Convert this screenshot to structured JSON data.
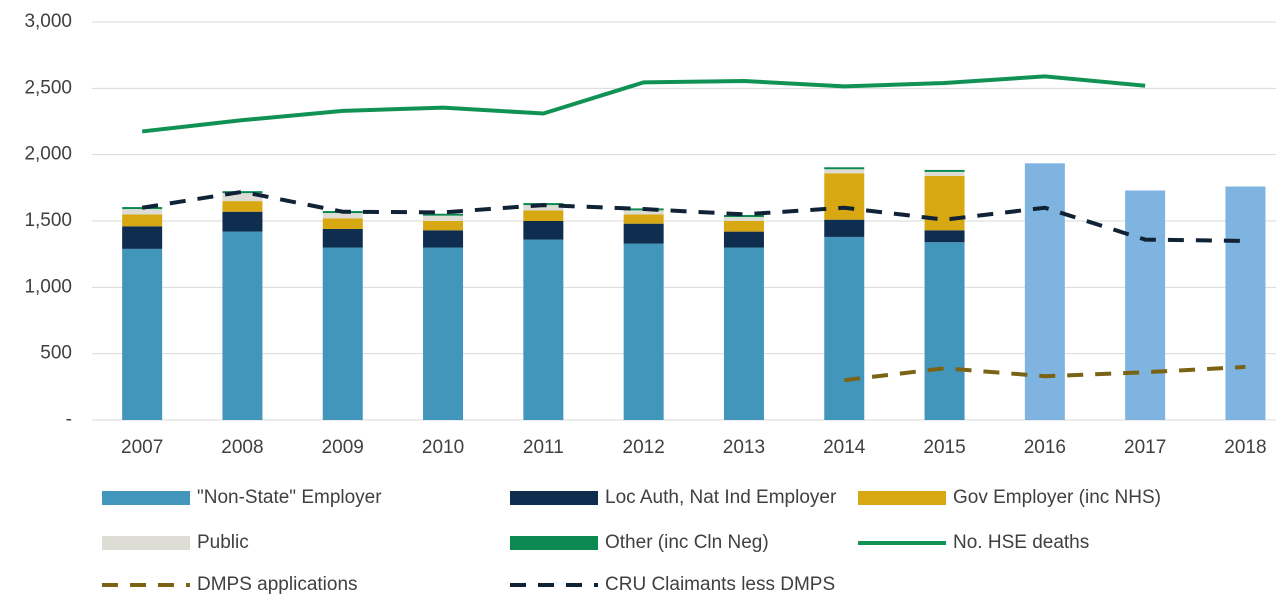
{
  "chart_data": {
    "type": "bar",
    "categories": [
      "2007",
      "2008",
      "2009",
      "2010",
      "2011",
      "2012",
      "2013",
      "2014",
      "2015",
      "2016",
      "2017",
      "2018"
    ],
    "ylim": [
      0,
      3000
    ],
    "yticks": [
      {
        "value": 0,
        "label": "-"
      },
      {
        "value": 500,
        "label": "500"
      },
      {
        "value": 1000,
        "label": "1,000"
      },
      {
        "value": 1500,
        "label": "1,500"
      },
      {
        "value": 2000,
        "label": "2,000"
      },
      {
        "value": 2500,
        "label": "2,500"
      },
      {
        "value": 3000,
        "label": "3,000"
      }
    ],
    "grid": true,
    "series": [
      {
        "name": "\"Non-State\" Employer",
        "type": "bar",
        "color": "#4396bb",
        "values": [
          1290,
          1420,
          1300,
          1300,
          1360,
          1330,
          1300,
          1380,
          1340,
          null,
          null,
          null
        ]
      },
      {
        "name": "Loc Auth, Nat Ind Employer",
        "type": "bar",
        "color": "#0f2d4e",
        "values": [
          170,
          150,
          140,
          130,
          140,
          150,
          120,
          130,
          90,
          null,
          null,
          null
        ]
      },
      {
        "name": "Gov Employer (inc NHS)",
        "type": "bar",
        "color": "#d8a813",
        "values": [
          90,
          80,
          80,
          70,
          80,
          70,
          80,
          350,
          410,
          null,
          null,
          null
        ]
      },
      {
        "name": "Public",
        "type": "bar",
        "color": "#ddddd5",
        "values": [
          40,
          60,
          40,
          40,
          40,
          30,
          30,
          30,
          30,
          null,
          null,
          null
        ]
      },
      {
        "name": "Other (inc Cln Neg)",
        "type": "bar",
        "color": "#0a8a50",
        "values": [
          15,
          15,
          15,
          15,
          15,
          15,
          15,
          15,
          15,
          null,
          null,
          null
        ]
      },
      {
        "name": "No. HSE deaths",
        "type": "line",
        "color": "#119255",
        "dashed": false,
        "values": [
          2175,
          2260,
          2330,
          2355,
          2310,
          2545,
          2555,
          2515,
          2540,
          2590,
          2520,
          null
        ]
      },
      {
        "name": "DMPS applications",
        "type": "line",
        "color": "#7a6314",
        "dashed": true,
        "values": [
          null,
          null,
          null,
          null,
          null,
          null,
          null,
          300,
          390,
          330,
          360,
          400
        ]
      },
      {
        "name": "CRU Claimants less DMPS",
        "type": "line",
        "color": "#0f2236",
        "dashed": true,
        "values": [
          1600,
          1720,
          1570,
          1565,
          1620,
          1590,
          1550,
          1600,
          1510,
          1600,
          1360,
          1350
        ]
      },
      {
        "type": "bar",
        "color": "#7fb3e0",
        "values": [
          null,
          null,
          null,
          null,
          null,
          null,
          null,
          null,
          null,
          1935,
          1730,
          1760
        ]
      }
    ]
  }
}
